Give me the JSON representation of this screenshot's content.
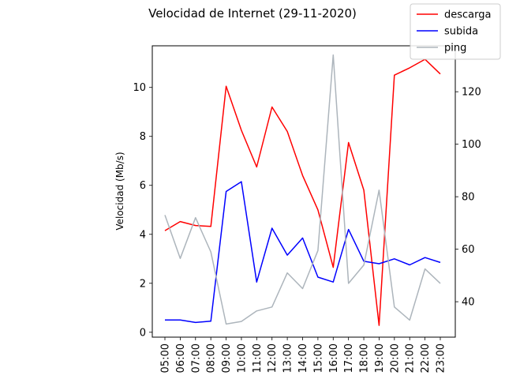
{
  "chart_data": {
    "type": "line",
    "title": "Velocidad de Internet (29-11-2020)",
    "xlabel": "",
    "ylabel": "Velocidad (Mb/s)",
    "y2label": "",
    "categories": [
      "05:00",
      "06:00",
      "07:00",
      "08:00",
      "09:00",
      "10:00",
      "11:00",
      "12:00",
      "13:00",
      "14:00",
      "15:00",
      "16:00",
      "17:00",
      "18:00",
      "19:00",
      "20:00",
      "21:00",
      "22:00",
      "23:00"
    ],
    "ylim": [
      -0.2,
      11.7
    ],
    "y2lim": [
      26.5,
      137.5
    ],
    "yticks": [
      0,
      2,
      4,
      6,
      8,
      10
    ],
    "y2ticks": [
      40,
      60,
      80,
      100,
      120
    ],
    "legend_position": "top-right",
    "series": [
      {
        "name": "descarga",
        "axis": "left",
        "color": "#ff0000",
        "values": [
          4.15,
          4.52,
          4.36,
          4.32,
          10.05,
          8.25,
          6.75,
          9.2,
          8.2,
          6.4,
          5.0,
          2.65,
          7.75,
          5.8,
          0.28,
          10.5,
          10.8,
          11.15,
          10.55
        ]
      },
      {
        "name": "subida",
        "axis": "left",
        "color": "#0000ff",
        "values": [
          0.5,
          0.5,
          0.4,
          0.45,
          5.75,
          6.15,
          2.05,
          4.25,
          3.15,
          3.85,
          2.25,
          2.05,
          4.2,
          2.9,
          2.8,
          3.0,
          2.75,
          3.05,
          2.85
        ]
      },
      {
        "name": "ping",
        "axis": "right",
        "color": "#adb5bc",
        "values": [
          73,
          56.5,
          72,
          59,
          31.5,
          32.5,
          36.5,
          38,
          51,
          45,
          59.5,
          134,
          47,
          54,
          82.5,
          38,
          33,
          52.5,
          47
        ]
      }
    ]
  }
}
